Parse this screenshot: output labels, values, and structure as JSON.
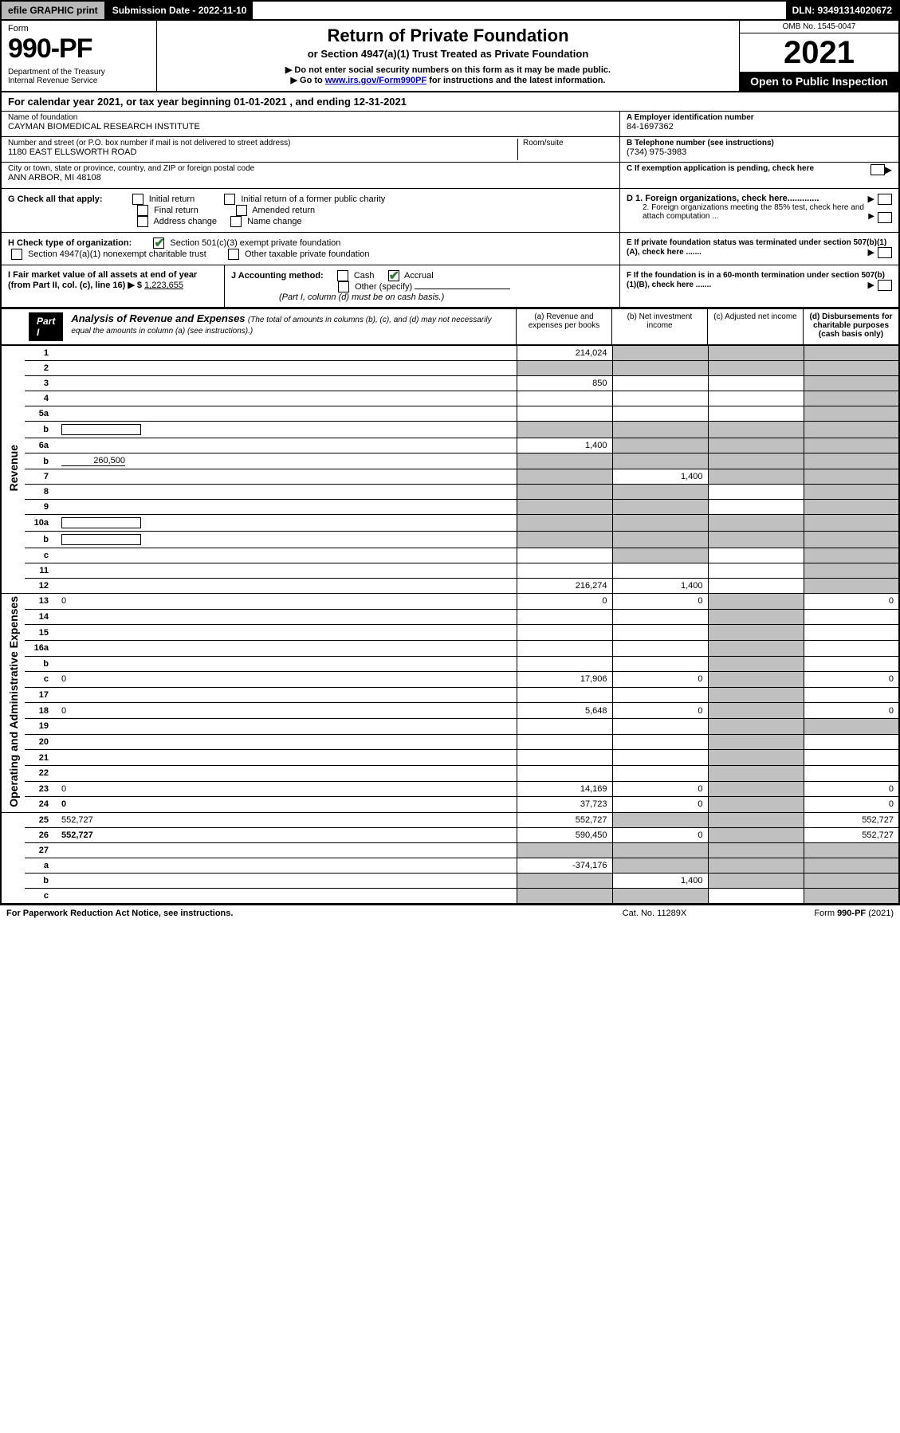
{
  "topbar": {
    "efile": "efile GRAPHIC print",
    "submission": "Submission Date - 2022-11-10",
    "dln": "DLN: 93491314020672"
  },
  "header": {
    "form_label": "Form",
    "form_num": "990-PF",
    "dept": "Department of the Treasury\nInternal Revenue Service",
    "title": "Return of Private Foundation",
    "subtitle": "or Section 4947(a)(1) Trust Treated as Private Foundation",
    "inst1": "▶ Do not enter social security numbers on this form as it may be made public.",
    "inst2_pre": "▶ Go to ",
    "inst2_link": "www.irs.gov/Form990PF",
    "inst2_post": " for instructions and the latest information.",
    "omb": "OMB No. 1545-0047",
    "year": "2021",
    "open": "Open to Public Inspection"
  },
  "cal_year": "For calendar year 2021, or tax year beginning 01-01-2021              , and ending 12-31-2021",
  "ident": {
    "name_lbl": "Name of foundation",
    "name_val": "CAYMAN BIOMEDICAL RESEARCH INSTITUTE",
    "addr_lbl": "Number and street (or P.O. box number if mail is not delivered to street address)",
    "addr_val": "1180 EAST ELLSWORTH ROAD",
    "room_lbl": "Room/suite",
    "city_lbl": "City or town, state or province, country, and ZIP or foreign postal code",
    "city_val": "ANN ARBOR, MI  48108",
    "ein_lbl": "A Employer identification number",
    "ein_val": "84-1697362",
    "tel_lbl": "B Telephone number (see instructions)",
    "tel_val": "(734) 975-3983",
    "c_lbl": "C If exemption application is pending, check here",
    "d1_lbl": "D 1. Foreign organizations, check here.............",
    "d2_lbl": "2. Foreign organizations meeting the 85% test, check here and attach computation ...",
    "e_lbl": "E  If private foundation status was terminated under section 507(b)(1)(A), check here .......",
    "f_lbl": "F  If the foundation is in a 60-month termination under section 507(b)(1)(B), check here ......."
  },
  "checks": {
    "g_lbl": "G Check all that apply:",
    "g_opts": [
      "Initial return",
      "Initial return of a former public charity",
      "Final return",
      "Amended return",
      "Address change",
      "Name change"
    ],
    "h_lbl": "H Check type of organization:",
    "h_opt1": "Section 501(c)(3) exempt private foundation",
    "h_opt2": "Section 4947(a)(1) nonexempt charitable trust",
    "h_opt3": "Other taxable private foundation",
    "i_lbl": "I Fair market value of all assets at end of year (from Part II, col. (c), line 16) ▶ $",
    "i_val": "1,223,655",
    "j_lbl": "J Accounting method:",
    "j_cash": "Cash",
    "j_accrual": "Accrual",
    "j_other": "Other (specify)",
    "j_note": "(Part I, column (d) must be on cash basis.)"
  },
  "part1": {
    "label": "Part I",
    "title": "Analysis of Revenue and Expenses",
    "sub": "(The total of amounts in columns (b), (c), and (d) may not necessarily equal the amounts in column (a) (see instructions).)",
    "col_a": "(a)   Revenue and expenses per books",
    "col_b": "(b)   Net investment income",
    "col_c": "(c)   Adjusted net income",
    "col_d": "(d)  Disbursements for charitable purposes (cash basis only)"
  },
  "side_labels": {
    "revenue": "Revenue",
    "expenses": "Operating and Administrative Expenses"
  },
  "rows": [
    {
      "n": "1",
      "d": "",
      "a": "214,024",
      "b": "",
      "c": "",
      "a_shade": false,
      "b_shade": true,
      "c_shade": true,
      "d_shade": true
    },
    {
      "n": "2",
      "d": "",
      "a": "",
      "b": "",
      "c": "",
      "a_shade": true,
      "b_shade": true,
      "c_shade": true,
      "d_shade": true,
      "bold_not": true
    },
    {
      "n": "3",
      "d": "",
      "a": "850",
      "b": "",
      "c": "",
      "d_shade": true
    },
    {
      "n": "4",
      "d": "",
      "a": "",
      "b": "",
      "c": "",
      "d_shade": true
    },
    {
      "n": "5a",
      "d": "",
      "a": "",
      "b": "",
      "c": "",
      "d_shade": true
    },
    {
      "n": "b",
      "d": "",
      "a": "",
      "b": "",
      "c": "",
      "a_shade": true,
      "b_shade": true,
      "c_shade": true,
      "d_shade": true,
      "inline_box": true
    },
    {
      "n": "6a",
      "d": "",
      "a": "1,400",
      "b": "",
      "c": "",
      "b_shade": true,
      "c_shade": true,
      "d_shade": true
    },
    {
      "n": "b",
      "d": "",
      "a": "",
      "b": "",
      "c": "",
      "a_shade": true,
      "b_shade": true,
      "c_shade": true,
      "d_shade": true,
      "inline_val": "260,500"
    },
    {
      "n": "7",
      "d": "",
      "a": "",
      "b": "1,400",
      "c": "",
      "a_shade": true,
      "c_shade": true,
      "d_shade": true
    },
    {
      "n": "8",
      "d": "",
      "a": "",
      "b": "",
      "c": "",
      "a_shade": true,
      "b_shade": true,
      "d_shade": true
    },
    {
      "n": "9",
      "d": "",
      "a": "",
      "b": "",
      "c": "",
      "a_shade": true,
      "b_shade": true,
      "d_shade": true
    },
    {
      "n": "10a",
      "d": "",
      "a": "",
      "b": "",
      "c": "",
      "a_shade": true,
      "b_shade": true,
      "c_shade": true,
      "d_shade": true,
      "inline_box": true
    },
    {
      "n": "b",
      "d": "",
      "a": "",
      "b": "",
      "c": "",
      "a_shade": true,
      "b_shade": true,
      "c_shade": true,
      "d_shade": true,
      "inline_box": true
    },
    {
      "n": "c",
      "d": "",
      "a": "",
      "b": "",
      "c": "",
      "b_shade": true,
      "d_shade": true
    },
    {
      "n": "11",
      "d": "",
      "a": "",
      "b": "",
      "c": "",
      "d_shade": true
    },
    {
      "n": "12",
      "d": "",
      "a": "216,274",
      "b": "1,400",
      "c": "",
      "bold": true,
      "d_shade": true
    },
    {
      "n": "13",
      "d": "0",
      "a": "0",
      "b": "0",
      "c": "",
      "c_shade": true
    },
    {
      "n": "14",
      "d": "",
      "a": "",
      "b": "",
      "c": "",
      "c_shade": true
    },
    {
      "n": "15",
      "d": "",
      "a": "",
      "b": "",
      "c": "",
      "c_shade": true
    },
    {
      "n": "16a",
      "d": "",
      "a": "",
      "b": "",
      "c": "",
      "c_shade": true
    },
    {
      "n": "b",
      "d": "",
      "a": "",
      "b": "",
      "c": "",
      "c_shade": true
    },
    {
      "n": "c",
      "d": "0",
      "a": "17,906",
      "b": "0",
      "c": "",
      "c_shade": true
    },
    {
      "n": "17",
      "d": "",
      "a": "",
      "b": "",
      "c": "",
      "c_shade": true
    },
    {
      "n": "18",
      "d": "0",
      "a": "5,648",
      "b": "0",
      "c": "",
      "c_shade": true
    },
    {
      "n": "19",
      "d": "",
      "a": "",
      "b": "",
      "c": "",
      "c_shade": true,
      "d_shade": true
    },
    {
      "n": "20",
      "d": "",
      "a": "",
      "b": "",
      "c": "",
      "c_shade": true
    },
    {
      "n": "21",
      "d": "",
      "a": "",
      "b": "",
      "c": "",
      "c_shade": true
    },
    {
      "n": "22",
      "d": "",
      "a": "",
      "b": "",
      "c": "",
      "c_shade": true
    },
    {
      "n": "23",
      "d": "0",
      "a": "14,169",
      "b": "0",
      "c": "",
      "c_shade": true
    },
    {
      "n": "24",
      "d": "0",
      "a": "37,723",
      "b": "0",
      "c": "",
      "bold": true,
      "c_shade": true
    },
    {
      "n": "25",
      "d": "552,727",
      "a": "552,727",
      "b": "",
      "c": "",
      "b_shade": true,
      "c_shade": true
    },
    {
      "n": "26",
      "d": "552,727",
      "a": "590,450",
      "b": "0",
      "c": "",
      "bold": true,
      "c_shade": true
    },
    {
      "n": "27",
      "d": "",
      "a": "",
      "b": "",
      "c": "",
      "a_shade": true,
      "b_shade": true,
      "c_shade": true,
      "d_shade": true
    },
    {
      "n": "a",
      "d": "",
      "a": "-374,176",
      "b": "",
      "c": "",
      "bold": true,
      "b_shade": true,
      "c_shade": true,
      "d_shade": true
    },
    {
      "n": "b",
      "d": "",
      "a": "",
      "b": "1,400",
      "c": "",
      "bold": true,
      "a_shade": true,
      "c_shade": true,
      "d_shade": true
    },
    {
      "n": "c",
      "d": "",
      "a": "",
      "b": "",
      "c": "",
      "bold": true,
      "a_shade": true,
      "b_shade": true,
      "d_shade": true
    }
  ],
  "footer": {
    "left": "For Paperwork Reduction Act Notice, see instructions.",
    "center": "Cat. No. 11289X",
    "right": "Form 990-PF (2021)"
  },
  "colors": {
    "shade": "#c0c0c0",
    "link": "#0000cc",
    "check": "#2e7d32"
  }
}
